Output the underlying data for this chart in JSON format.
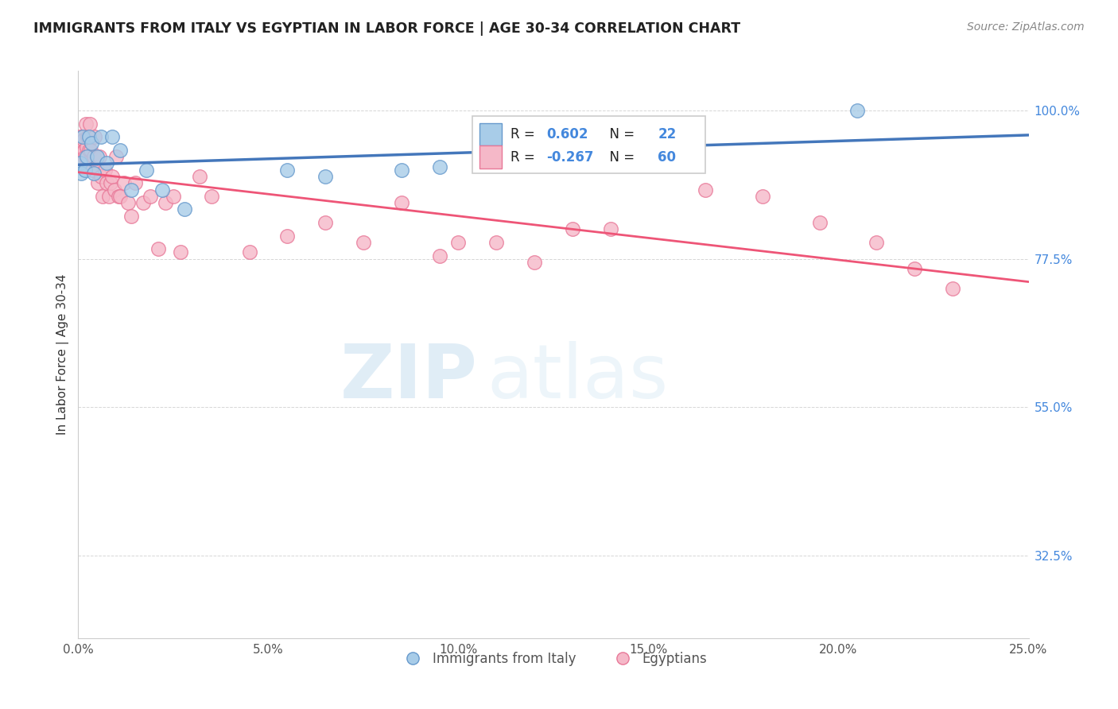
{
  "title": "IMMIGRANTS FROM ITALY VS EGYPTIAN IN LABOR FORCE | AGE 30-34 CORRELATION CHART",
  "source": "Source: ZipAtlas.com",
  "xlabel_vals": [
    0.0,
    5.0,
    10.0,
    15.0,
    20.0,
    25.0
  ],
  "ylabel_vals": [
    100.0,
    77.5,
    55.0,
    32.5
  ],
  "ylabel_label": "In Labor Force | Age 30-34",
  "xmin": 0.0,
  "xmax": 25.0,
  "ymin": 20.0,
  "ymax": 106.0,
  "italy_color": "#a8cce8",
  "egypt_color": "#f5b8c8",
  "italy_edge": "#6699cc",
  "egypt_edge": "#e87898",
  "italy_line_color": "#4477bb",
  "egypt_line_color": "#ee5577",
  "italy_R": 0.602,
  "italy_N": 22,
  "egypt_R": -0.267,
  "egypt_N": 60,
  "italy_x": [
    0.05,
    0.08,
    0.12,
    0.18,
    0.22,
    0.28,
    0.35,
    0.42,
    0.5,
    0.6,
    0.75,
    0.9,
    1.1,
    1.4,
    1.8,
    2.2,
    2.8,
    5.5,
    6.5,
    8.5,
    9.5,
    20.5
  ],
  "italy_y": [
    92.0,
    90.5,
    96.0,
    91.0,
    93.0,
    96.0,
    95.0,
    90.5,
    93.0,
    96.0,
    92.0,
    96.0,
    94.0,
    88.0,
    91.0,
    88.0,
    85.0,
    91.0,
    90.0,
    91.0,
    91.5,
    100.0
  ],
  "egypt_x": [
    0.03,
    0.06,
    0.08,
    0.1,
    0.12,
    0.14,
    0.16,
    0.18,
    0.2,
    0.22,
    0.25,
    0.28,
    0.3,
    0.33,
    0.36,
    0.4,
    0.44,
    0.48,
    0.52,
    0.56,
    0.6,
    0.65,
    0.7,
    0.75,
    0.8,
    0.85,
    0.9,
    0.95,
    1.0,
    1.05,
    1.1,
    1.2,
    1.3,
    1.4,
    1.5,
    1.7,
    1.9,
    2.1,
    2.3,
    2.5,
    2.7,
    3.2,
    3.5,
    4.5,
    5.5,
    6.5,
    7.5,
    8.5,
    9.5,
    10.0,
    11.0,
    12.0,
    13.0,
    14.0,
    16.5,
    18.0,
    19.5,
    21.0,
    22.0,
    23.0
  ],
  "egypt_y": [
    96.0,
    95.5,
    93.5,
    96.0,
    92.0,
    95.5,
    94.0,
    93.0,
    98.0,
    94.5,
    96.0,
    94.0,
    98.0,
    94.0,
    91.0,
    93.0,
    96.0,
    91.5,
    89.0,
    93.0,
    90.0,
    87.0,
    91.0,
    89.0,
    87.0,
    89.0,
    90.0,
    88.0,
    93.0,
    87.0,
    87.0,
    89.0,
    86.0,
    84.0,
    89.0,
    86.0,
    87.0,
    79.0,
    86.0,
    87.0,
    78.5,
    90.0,
    87.0,
    78.5,
    81.0,
    83.0,
    80.0,
    86.0,
    78.0,
    80.0,
    80.0,
    77.0,
    82.0,
    82.0,
    88.0,
    87.0,
    83.0,
    80.0,
    76.0,
    73.0
  ],
  "watermark_zip": "ZIP",
  "watermark_atlas": "atlas",
  "bg_color": "#ffffff"
}
